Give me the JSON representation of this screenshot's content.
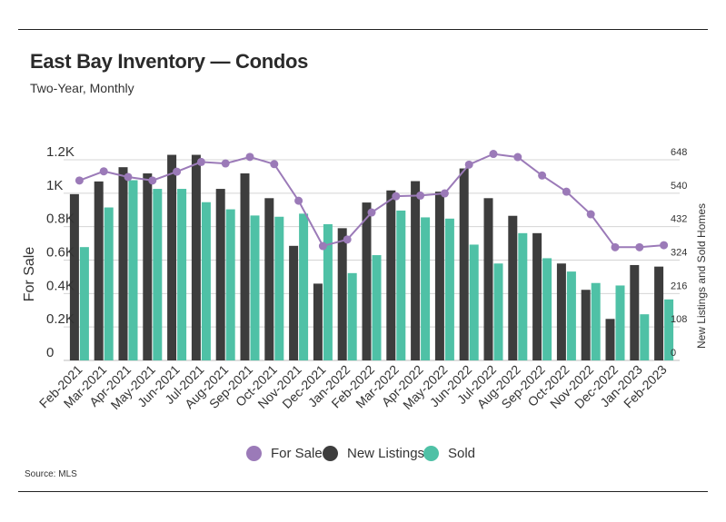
{
  "header": {
    "title": "East Bay Inventory — Condos",
    "subtitle": "Two-Year, Monthly"
  },
  "footer": {
    "source": "Source: MLS"
  },
  "colors": {
    "for_sale": "#9b7ab8",
    "new_listings": "#3d3d3d",
    "sold": "#4fc1a6",
    "grid": "#d4d4d4",
    "text": "#333333"
  },
  "chart_data": {
    "type": "bar",
    "categories": [
      "Feb-2021",
      "Mar-2021",
      "Apr-2021",
      "May-2021",
      "Jun-2021",
      "Jul-2021",
      "Aug-2021",
      "Sep-2021",
      "Oct-2021",
      "Nov-2021",
      "Dec-2021",
      "Jan-2022",
      "Feb-2022",
      "Mar-2022",
      "Apr-2022",
      "May-2022",
      "Jun-2022",
      "Jul-2022",
      "Aug-2022",
      "Sep-2022",
      "Oct-2022",
      "Nov-2022",
      "Dec-2022",
      "Jan-2023",
      "Feb-2023"
    ],
    "ylabel": "For Sale",
    "y2label": "New Listings and Sold Homes",
    "ylim": [
      0,
      1200
    ],
    "y2lim": [
      0,
      648
    ],
    "yticks": [
      "0",
      "0.2K",
      "0.4K",
      "0.6K",
      "0.8K",
      "1K",
      "1.2K"
    ],
    "y2ticks": [
      "0",
      "108",
      "216",
      "324",
      "432",
      "540",
      "648"
    ],
    "grid": true,
    "legend_position": "bottom",
    "series": [
      {
        "name": "For Sale",
        "type": "line",
        "axis": "left",
        "values": [
          1076,
          1131,
          1097,
          1076,
          1129,
          1187,
          1178,
          1217,
          1174,
          955,
          684,
          723,
          885,
          982,
          986,
          999,
          1171,
          1235,
          1216,
          1106,
          1009,
          874,
          677,
          677,
          689
        ]
      },
      {
        "name": "New Listings",
        "type": "bar",
        "axis": "right",
        "values": [
          537,
          578,
          624,
          604,
          664,
          664,
          554,
          604,
          524,
          370,
          248,
          427,
          510,
          549,
          579,
          545,
          620,
          524,
          467,
          411,
          313,
          228,
          134,
          308,
          303
        ]
      },
      {
        "name": "Sold",
        "type": "bar",
        "axis": "right",
        "values": [
          366,
          494,
          582,
          554,
          554,
          511,
          488,
          468,
          464,
          474,
          440,
          282,
          340,
          484,
          462,
          458,
          374,
          313,
          411,
          330,
          287,
          250,
          242,
          149,
          197
        ]
      }
    ]
  }
}
